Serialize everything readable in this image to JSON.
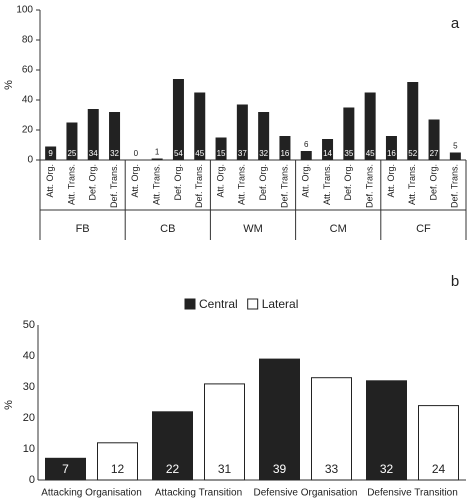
{
  "chart_data": [
    {
      "type": "group_bar",
      "label": "a",
      "y_label": "%",
      "ylim": [
        0,
        100
      ],
      "yticks": [
        0,
        20,
        40,
        60,
        80,
        100
      ],
      "color": "#222222",
      "groups": [
        {
          "name": "FB",
          "categories": [
            "Att. Org.",
            "Att. Trans.",
            "Def. Org.",
            "Def. Trans."
          ],
          "values": [
            9,
            25,
            34,
            32
          ]
        },
        {
          "name": "CB",
          "categories": [
            "Att. Org.",
            "Att. Trans.",
            "Def. Org.",
            "Def. Trans."
          ],
          "values": [
            0,
            1,
            54,
            45
          ]
        },
        {
          "name": "WM",
          "categories": [
            "Att. Org.",
            "Att. Trans.",
            "Def. Org.",
            "Def. Trans."
          ],
          "values": [
            15,
            37,
            32,
            16
          ]
        },
        {
          "name": "CM",
          "categories": [
            "Att. Org.",
            "Att. Trans.",
            "Def. Org.",
            "Def. Trans."
          ],
          "values": [
            6,
            14,
            35,
            45
          ]
        },
        {
          "name": "CF",
          "categories": [
            "Att. Org.",
            "Att. Trans.",
            "Def. Org.",
            "Def. Trans."
          ],
          "values": [
            16,
            52,
            27,
            5
          ]
        }
      ]
    },
    {
      "type": "grouped_bar",
      "label": "b",
      "y_label": "%",
      "ylim": [
        0,
        50
      ],
      "yticks": [
        0,
        10,
        20,
        30,
        40,
        50
      ],
      "legend": "top",
      "categories": [
        "Attacking Organisation",
        "Attacking Transition",
        "Defensive Organisation",
        "Defensive Transition"
      ],
      "series": [
        {
          "name": "Central",
          "color": "#222222",
          "values": [
            7,
            22,
            39,
            32
          ]
        },
        {
          "name": "Lateral",
          "color": "#ffffff",
          "values": [
            12,
            31,
            33,
            24
          ]
        }
      ]
    }
  ]
}
